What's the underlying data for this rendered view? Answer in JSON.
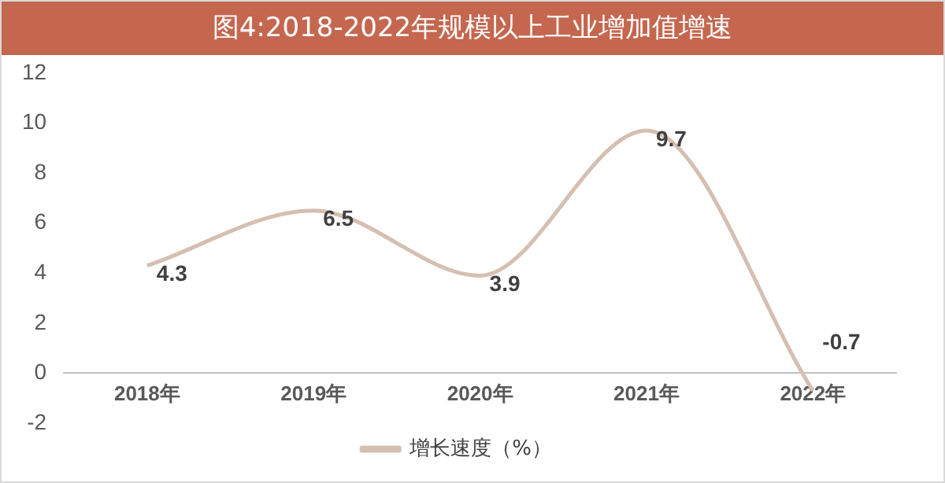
{
  "chart_data": {
    "type": "line",
    "title": "图4:2018-2022年规模以上工业增加值增速",
    "categories": [
      "2018年",
      "2019年",
      "2020年",
      "2021年",
      "2022年"
    ],
    "series": [
      {
        "name": "增长速度（%）",
        "color": "#d5bfb1",
        "values": [
          4.3,
          6.5,
          3.9,
          9.7,
          -0.7
        ]
      }
    ],
    "ylim": [
      -2,
      12
    ],
    "yticks": [
      -2,
      0,
      2,
      4,
      6,
      8,
      10,
      12
    ],
    "grid": false,
    "legend": "bottom",
    "marker": "none",
    "line_style": "solid",
    "data_labels": true
  }
}
